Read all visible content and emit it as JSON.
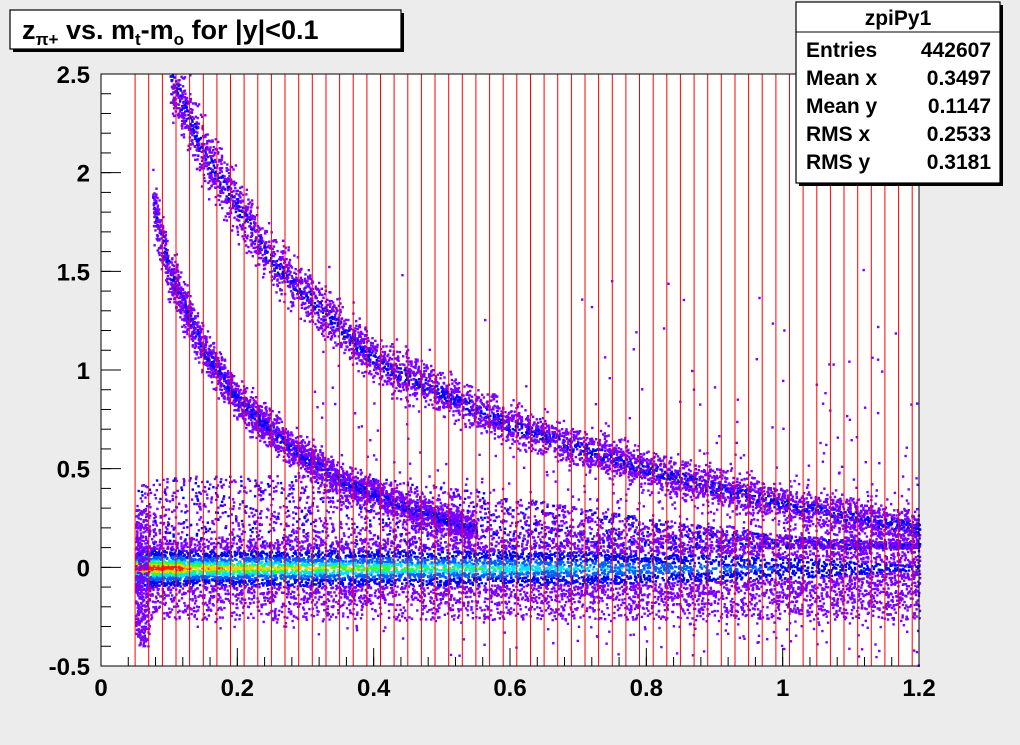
{
  "chart_data": {
    "type": "heatmap",
    "title": "z_{π+} vs. m_t-m_o for |y|<0.1",
    "title_parts": {
      "z": "z",
      "z_sub": "π+",
      "vs": " vs. m",
      "t_sub": "t",
      "minus_m": "-m",
      "o_sub": "o",
      "rest": " for |y|<0.1"
    },
    "xlabel": "",
    "ylabel": "",
    "xlim": [
      0,
      1.2
    ],
    "ylim": [
      -0.5,
      2.5
    ],
    "x_ticks": [
      "0",
      "0.2",
      "0.4",
      "0.6",
      "0.8",
      "1",
      "1.2"
    ],
    "x_tick_values": [
      0,
      0.2,
      0.4,
      0.6,
      0.8,
      1.0,
      1.2
    ],
    "y_ticks": [
      "-0.5",
      "0",
      "0.5",
      "1",
      "1.5",
      "2",
      "2.5"
    ],
    "y_tick_values": [
      -0.5,
      0,
      0.5,
      1,
      1.5,
      2,
      2.5
    ],
    "grid": false,
    "vertical_lines": {
      "color": "#ff0000",
      "x_start": 0.05,
      "x_end": 1.19,
      "step": 0.02
    },
    "bands": [
      {
        "name": "",
        "shape": "central ridge",
        "x_range": [
          0.05,
          1.2
        ],
        "y_center": 0.0,
        "peak_x": 0.08
      },
      {
        "name": "",
        "shape": "upper curved band",
        "points": [
          [
            0.1,
            2.5
          ],
          [
            0.15,
            2.1
          ],
          [
            0.25,
            1.55
          ],
          [
            0.4,
            1.05
          ],
          [
            0.6,
            0.72
          ],
          [
            0.8,
            0.5
          ],
          [
            1.0,
            0.32
          ],
          [
            1.2,
            0.2
          ]
        ]
      },
      {
        "name": "",
        "shape": "lower curved band",
        "points": [
          [
            0.075,
            1.85
          ],
          [
            0.1,
            1.5
          ],
          [
            0.15,
            1.1
          ],
          [
            0.2,
            0.85
          ],
          [
            0.28,
            0.6
          ],
          [
            0.35,
            0.45
          ],
          [
            0.45,
            0.3
          ],
          [
            0.55,
            0.2
          ]
        ]
      }
    ],
    "colors": {
      "low": "#7a00ff",
      "mid": "#0000ff",
      "high": "#00ffff",
      "peak": "#ff0000",
      "lines": "#ff0000",
      "background": "#ffffff"
    }
  },
  "stats_box": {
    "title": "zpiPy1",
    "rows": [
      {
        "label": "Entries",
        "value": "442607"
      },
      {
        "label": "Mean x",
        "value": "0.3497"
      },
      {
        "label": "Mean y",
        "value": "0.1147"
      },
      {
        "label": "RMS x",
        "value": "0.2533"
      },
      {
        "label": "RMS y",
        "value": "0.3181"
      }
    ]
  }
}
